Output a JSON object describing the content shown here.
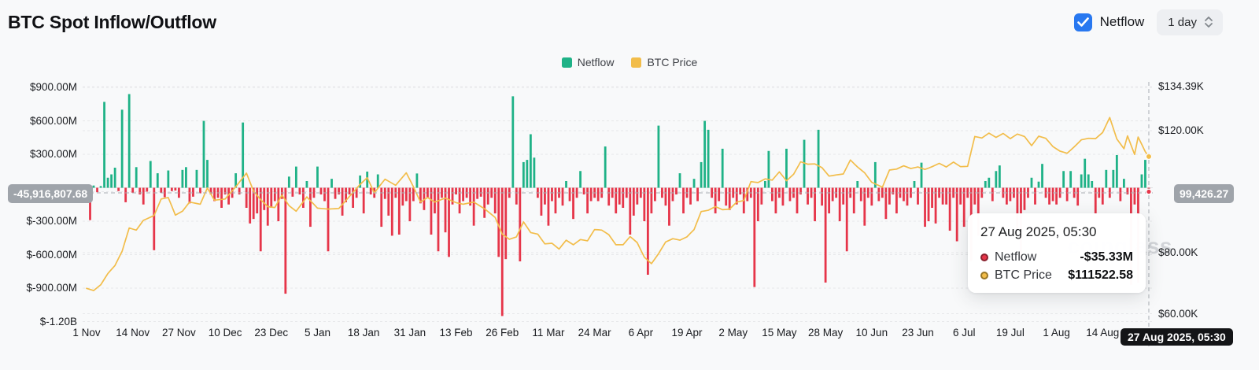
{
  "header": {
    "title": "BTC Spot Inflow/Outflow"
  },
  "controls": {
    "netflow_label": "Netflow",
    "netflow_checked": true,
    "interval_value": "1 day"
  },
  "legend": [
    {
      "label": "Netflow",
      "color": "#1fb287"
    },
    {
      "label": "BTC Price",
      "color": "#f2bd4a"
    }
  ],
  "colors": {
    "inflow_green": "#1fb287",
    "outflow_red": "#e63549",
    "price_yellow": "#f2bd4a",
    "checkbox_blue": "#2878f0",
    "badge_gray": "#9fa4aa",
    "badge_black": "#141517",
    "grid": "#e6e7e9"
  },
  "watermark": "coinglass",
  "crosshair": {
    "left_value": "-45,916,807.68",
    "right_value": "99,426.27",
    "date_label": "27 Aug 2025, 05:30",
    "day_index": 299,
    "netflow_musd": -35.33,
    "price_kusd": 111.52
  },
  "tooltip": {
    "date": "27 Aug 2025, 05:30",
    "rows": [
      {
        "label": "Netflow",
        "value": "-$35.33M",
        "dot_color": "#e63549"
      },
      {
        "label": "BTC Price",
        "value": "$111522.58",
        "dot_color": "#f2bd4a"
      }
    ]
  },
  "chart_data": {
    "type": "bar+line",
    "title": "BTC Spot Inflow/Outflow",
    "grid": true,
    "legend_position": "top-center",
    "start_date": "1 Nov 2024",
    "end_date": "27 Aug 2025",
    "x_ticks": [
      "1 Nov",
      "14 Nov",
      "27 Nov",
      "10 Dec",
      "23 Dec",
      "5 Jan",
      "18 Jan",
      "31 Jan",
      "13 Feb",
      "26 Feb",
      "11 Mar",
      "24 Mar",
      "6 Apr",
      "19 Apr",
      "2 May",
      "15 May",
      "28 May",
      "10 Jun",
      "23 Jun",
      "6 Jul",
      "19 Jul",
      "1 Aug",
      "14 Aug"
    ],
    "x_tick_day_step": 13,
    "left_axis": {
      "unit": "USD netflow",
      "ylim_musd": [
        -1200,
        900
      ],
      "ticks": [
        {
          "v": 900,
          "label": "$900.00M"
        },
        {
          "v": 600,
          "label": "$600.00M"
        },
        {
          "v": 300,
          "label": "$300.00M"
        },
        {
          "v": 0,
          "label": ""
        },
        {
          "v": -300,
          "label": "$-300.00M"
        },
        {
          "v": -600,
          "label": "$-600.00M"
        },
        {
          "v": -900,
          "label": "$-900.00M"
        },
        {
          "v": -1200,
          "label": "$-1.20B"
        }
      ]
    },
    "right_axis": {
      "unit": "BTC price (USD)",
      "ylim_kusd": [
        60,
        134.39
      ],
      "ticks": [
        {
          "v": 134.39,
          "label": "$134.39K"
        },
        {
          "v": 120,
          "label": "$120.00K"
        },
        {
          "v": 100,
          "label": ""
        },
        {
          "v": 80,
          "label": "$80.00K"
        },
        {
          "v": 60,
          "label": "$60.00K"
        }
      ]
    },
    "series": [
      {
        "name": "Netflow",
        "type": "bar",
        "unit": "$M",
        "daily": true,
        "values": [
          -60,
          -290,
          20,
          -40,
          15,
          770,
          90,
          120,
          180,
          -30,
          700,
          -130,
          840,
          -45,
          185,
          -60,
          -150,
          -35,
          240,
          -560,
          130,
          -45,
          -85,
          155,
          -30,
          -25,
          -90,
          160,
          185,
          -140,
          -80,
          160,
          -50,
          600,
          250,
          -60,
          -120,
          -90,
          -180,
          -60,
          -150,
          -90,
          130,
          -60,
          585,
          -180,
          -320,
          -280,
          -230,
          -570,
          -200,
          -340,
          -180,
          -120,
          -300,
          -100,
          -950,
          100,
          -80,
          190,
          -60,
          -180,
          60,
          -350,
          -90,
          190,
          -60,
          -120,
          -570,
          80,
          -100,
          -60,
          -250,
          -130,
          -60,
          -180,
          -90,
          110,
          -230,
          145,
          -60,
          -90,
          120,
          -350,
          -100,
          -250,
          -430,
          -90,
          -420,
          -160,
          -120,
          -300,
          -120,
          128,
          -140,
          -200,
          -90,
          -420,
          -230,
          -570,
          -90,
          -400,
          -620,
          -150,
          -60,
          -230,
          -120,
          -90,
          -160,
          -340,
          -100,
          -80,
          -270,
          -150,
          -90,
          -230,
          -620,
          -1150,
          -640,
          -90,
          820,
          -150,
          -660,
          230,
          250,
          480,
          270,
          -90,
          -250,
          -150,
          -340,
          -120,
          -230,
          -90,
          -160,
          60,
          -120,
          -280,
          -90,
          150,
          -60,
          -230,
          -120,
          -90,
          -120,
          -90,
          370,
          -160,
          -90,
          -230,
          -150,
          -180,
          -90,
          -420,
          -250,
          -150,
          -90,
          -300,
          -780,
          -230,
          -120,
          557,
          -90,
          -160,
          -340,
          -120,
          -60,
          130,
          -230,
          -90,
          -150,
          80,
          -120,
          230,
          600,
          520,
          -90,
          -230,
          -120,
          350,
          -160,
          -200,
          -90,
          -150,
          -60,
          -230,
          -120,
          -90,
          -890,
          -300,
          -150,
          60,
          330,
          -120,
          -230,
          -90,
          -160,
          350,
          -120,
          -90,
          -230,
          -60,
          430,
          -150,
          -90,
          -300,
          520,
          -160,
          -850,
          -230,
          -120,
          -90,
          -300,
          -150,
          -570,
          -90,
          -230,
          60,
          -120,
          -340,
          -90,
          -160,
          230,
          -120,
          -90,
          -280,
          -150,
          -60,
          -230,
          -90,
          -120,
          -160,
          -90,
          60,
          -150,
          225,
          -350,
          -300,
          -180,
          -320,
          -90,
          -150,
          -150,
          -385,
          -90,
          -480,
          -150,
          -350,
          -90,
          -657,
          -150,
          -430,
          -90,
          60,
          90,
          -120,
          150,
          200,
          -90,
          -150,
          -120,
          -90,
          -380,
          -650,
          -200,
          -90,
          90,
          -150,
          55,
          214,
          -90,
          -150,
          -120,
          -150,
          -90,
          150,
          -120,
          150,
          -90,
          -160,
          120,
          260,
          120,
          60,
          -230,
          -90,
          -150,
          160,
          -90,
          160,
          293,
          -120,
          80,
          -60,
          -871,
          -150,
          -850,
          120,
          250,
          -35
        ]
      },
      {
        "name": "BTC Price",
        "type": "line",
        "unit": "$K",
        "anchors": [
          [
            0,
            68.3
          ],
          [
            2,
            67.6
          ],
          [
            4,
            69.5
          ],
          [
            6,
            73.2
          ],
          [
            8,
            75.8
          ],
          [
            10,
            80.5
          ],
          [
            12,
            88.1
          ],
          [
            14,
            87.4
          ],
          [
            16,
            90.6
          ],
          [
            19,
            92.2
          ],
          [
            21,
            97.6
          ],
          [
            23,
            98.1
          ],
          [
            25,
            92.3
          ],
          [
            27,
            93.6
          ],
          [
            29,
            96.6
          ],
          [
            32,
            95.9
          ],
          [
            34,
            101.2
          ],
          [
            36,
            97.2
          ],
          [
            39,
            97.6
          ],
          [
            42,
            101.6
          ],
          [
            45,
            106.1
          ],
          [
            47,
            100.2
          ],
          [
            49,
            97.4
          ],
          [
            51,
            95.1
          ],
          [
            53,
            94.8
          ],
          [
            55,
            98.9
          ],
          [
            57,
            95.4
          ],
          [
            59,
            93.6
          ],
          [
            62,
            98.3
          ],
          [
            65,
            94.6
          ],
          [
            68,
            94.3
          ],
          [
            71,
            94.5
          ],
          [
            73,
            97.1
          ],
          [
            77,
            102.4
          ],
          [
            79,
            104.6
          ],
          [
            81,
            99.6
          ],
          [
            84,
            104.1
          ],
          [
            87,
            102.1
          ],
          [
            90,
            106.2
          ],
          [
            92,
            101.6
          ],
          [
            94,
            96.6
          ],
          [
            96,
            98.1
          ],
          [
            98,
            96.6
          ],
          [
            101,
            97.9
          ],
          [
            104,
            96.4
          ],
          [
            106,
            95.9
          ],
          [
            109,
            96.6
          ],
          [
            112,
            94.4
          ],
          [
            115,
            91.6
          ],
          [
            117,
            86.1
          ],
          [
            119,
            84.4
          ],
          [
            121,
            85.2
          ],
          [
            123,
            90.1
          ],
          [
            125,
            86.6
          ],
          [
            127,
            86.1
          ],
          [
            129,
            82.9
          ],
          [
            131,
            83.1
          ],
          [
            133,
            81.2
          ],
          [
            135,
            84.1
          ],
          [
            137,
            82.6
          ],
          [
            139,
            84.3
          ],
          [
            141,
            83.9
          ],
          [
            143,
            87.6
          ],
          [
            145,
            87.4
          ],
          [
            147,
            85.9
          ],
          [
            149,
            82.6
          ],
          [
            151,
            82.6
          ],
          [
            153,
            85.3
          ],
          [
            155,
            83.3
          ],
          [
            157,
            78.5
          ],
          [
            159,
            76.4
          ],
          [
            161,
            79.7
          ],
          [
            163,
            83.5
          ],
          [
            165,
            84.6
          ],
          [
            167,
            84.1
          ],
          [
            169,
            85.2
          ],
          [
            171,
            87.6
          ],
          [
            173,
            93.5
          ],
          [
            175,
            93.9
          ],
          [
            177,
            95.1
          ],
          [
            179,
            94.1
          ],
          [
            181,
            94.3
          ],
          [
            183,
            96.6
          ],
          [
            185,
            97.1
          ],
          [
            187,
            103.3
          ],
          [
            189,
            103.0
          ],
          [
            191,
            104.2
          ],
          [
            193,
            103.8
          ],
          [
            195,
            106.5
          ],
          [
            197,
            103.6
          ],
          [
            199,
            105.7
          ],
          [
            201,
            109.8
          ],
          [
            203,
            109.0
          ],
          [
            205,
            109.1
          ],
          [
            207,
            107.9
          ],
          [
            209,
            105.1
          ],
          [
            211,
            105.5
          ],
          [
            213,
            105.8
          ],
          [
            215,
            110.4
          ],
          [
            217,
            108.1
          ],
          [
            219,
            106.2
          ],
          [
            221,
            103.1
          ],
          [
            224,
            101.5
          ],
          [
            226,
            107.1
          ],
          [
            228,
            107.4
          ],
          [
            230,
            108.5
          ],
          [
            232,
            107.6
          ],
          [
            234,
            108.1
          ],
          [
            236,
            107.3
          ],
          [
            238,
            108.2
          ],
          [
            240,
            109.3
          ],
          [
            242,
            108.1
          ],
          [
            244,
            109.7
          ],
          [
            246,
            108.2
          ],
          [
            248,
            108.3
          ],
          [
            250,
            118.1
          ],
          [
            252,
            117.6
          ],
          [
            254,
            119.2
          ],
          [
            256,
            117.8
          ],
          [
            258,
            119.1
          ],
          [
            260,
            117.4
          ],
          [
            262,
            118.9
          ],
          [
            264,
            118.1
          ],
          [
            266,
            115.1
          ],
          [
            268,
            118.2
          ],
          [
            270,
            117.5
          ],
          [
            272,
            114.8
          ],
          [
            274,
            113.3
          ],
          [
            276,
            112.6
          ],
          [
            278,
            114.7
          ],
          [
            280,
            117.0
          ],
          [
            282,
            117.5
          ],
          [
            284,
            117.4
          ],
          [
            286,
            119.4
          ],
          [
            288,
            124.3
          ],
          [
            290,
            117.3
          ],
          [
            292,
            114.1
          ],
          [
            293,
            118.3
          ],
          [
            295,
            112.2
          ],
          [
            296,
            117.9
          ],
          [
            298,
            113.1
          ],
          [
            299,
            111.5
          ]
        ]
      }
    ]
  }
}
